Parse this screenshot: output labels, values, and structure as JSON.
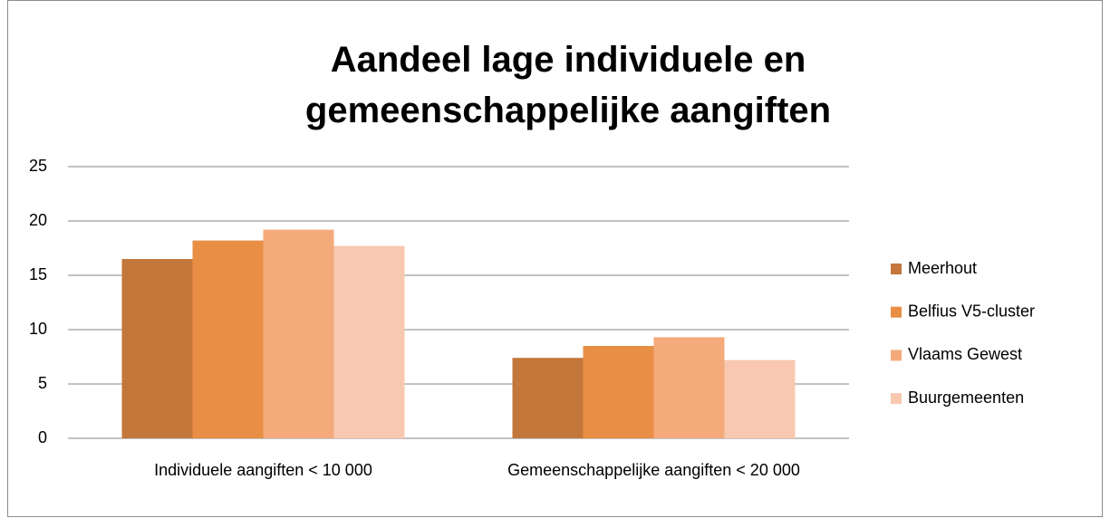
{
  "chart_data": {
    "type": "bar",
    "title": "Aandeel lage individuele en gemeenschappelijke aangiften",
    "categories": [
      "Individuele aangiften < 10 000",
      "Gemeenschappelijke aangiften < 20 000"
    ],
    "series": [
      {
        "name": "Meerhout",
        "color": "#c4773b",
        "values": [
          16.5,
          7.4
        ]
      },
      {
        "name": "Belfius V5-cluster",
        "color": "#e88f45",
        "values": [
          18.2,
          8.5
        ]
      },
      {
        "name": "Vlaams Gewest",
        "color": "#f5aa7b",
        "values": [
          19.2,
          9.3
        ]
      },
      {
        "name": "Buurgemeenten",
        "color": "#f8c9b0",
        "values": [
          17.7,
          7.2
        ]
      }
    ],
    "ylim": [
      0,
      25
    ],
    "yticks": [
      0,
      5,
      10,
      15,
      20,
      25
    ],
    "grid": true,
    "legend": "right"
  }
}
